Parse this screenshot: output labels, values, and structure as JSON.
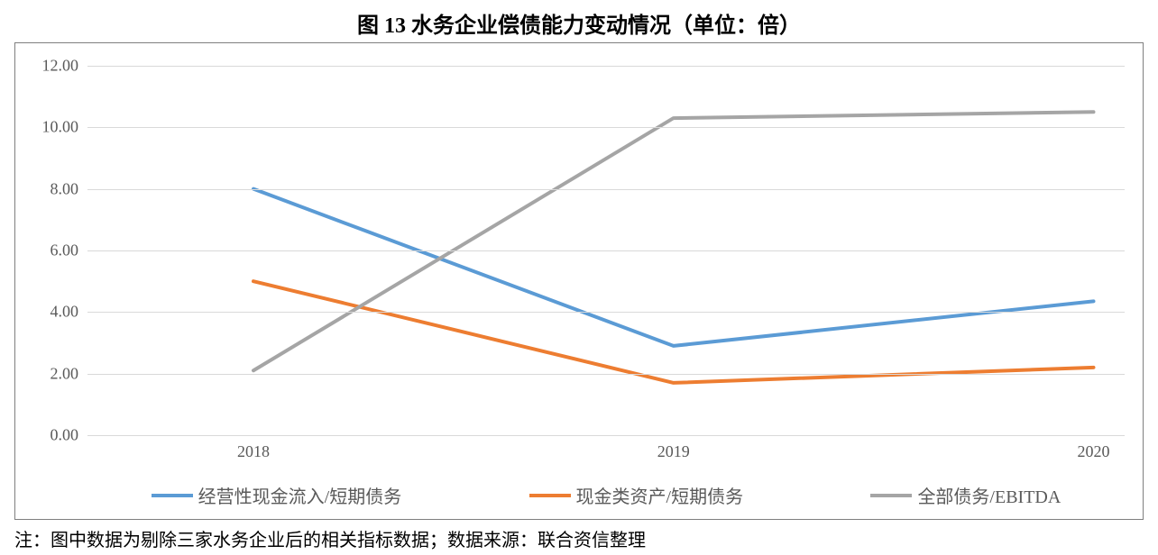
{
  "title": "图 13   水务企业偿债能力变动情况（单位：倍）",
  "footnote": "注：图中数据为剔除三家水务企业后的相关指标数据；数据来源：联合资信整理",
  "chart": {
    "type": "line",
    "background_color": "#ffffff",
    "border_color": "#7f7f7f",
    "grid_color": "#d9d9d9",
    "axis_font_color": "#595959",
    "axis_fontsize": 18,
    "title_fontsize": 24,
    "legend_fontsize": 20,
    "line_width": 4,
    "ylim": [
      0,
      12
    ],
    "ytick_step": 2,
    "y_decimals": 2,
    "categories": [
      "2018",
      "2019",
      "2020"
    ],
    "x_positions_pct": [
      16.0,
      56.5,
      97.0
    ],
    "series": [
      {
        "name": "经营性现金流入/短期债务",
        "color": "#5b9bd5",
        "values": [
          8.0,
          2.9,
          4.35
        ]
      },
      {
        "name": "现金类资产/短期债务",
        "color": "#ed7d31",
        "values": [
          5.0,
          1.7,
          2.2
        ]
      },
      {
        "name": "全部债务/EBITDA",
        "color": "#a5a5a5",
        "values": [
          2.1,
          10.3,
          10.5
        ]
      }
    ]
  }
}
